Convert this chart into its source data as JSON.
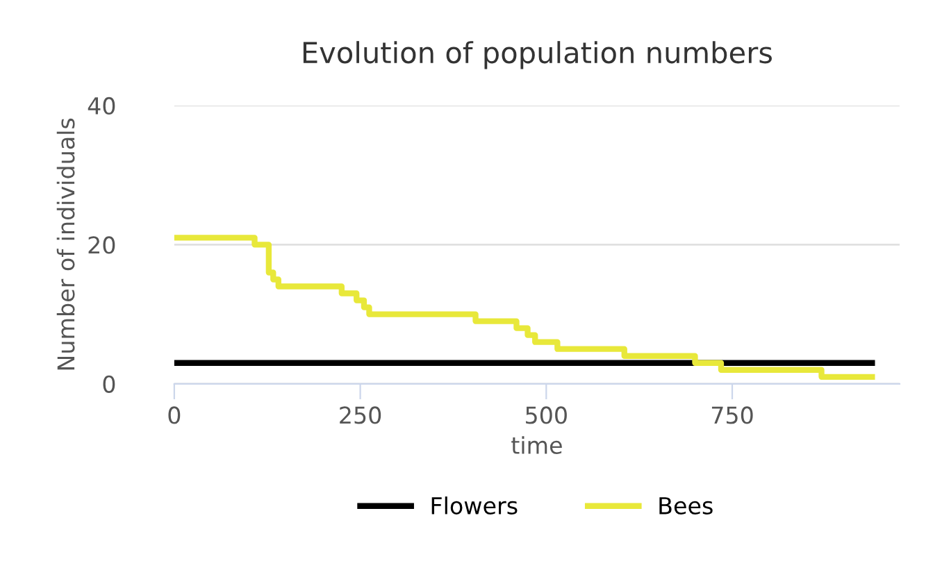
{
  "chart_data": {
    "type": "step",
    "title": "Evolution of population numbers",
    "xlabel": "time",
    "ylabel": "Number of individuals",
    "xlim": [
      0,
      975
    ],
    "xticks": [
      0,
      250,
      500,
      750
    ],
    "ylim": [
      0,
      40
    ],
    "yticks": [
      0,
      20,
      40
    ],
    "grid": "y",
    "legend": "bottom",
    "marker": "none",
    "line_style": "solid",
    "series": [
      {
        "name": "Flowers",
        "color": "#000000",
        "x": [
          0,
          938
        ],
        "values": [
          3,
          3
        ]
      },
      {
        "name": "Bees",
        "color": "#e8e83a",
        "x": [
          0,
          108,
          127,
          133,
          140,
          147,
          225,
          245,
          255,
          262,
          405,
          460,
          475,
          485,
          495,
          515,
          605,
          700,
          735,
          870,
          938
        ],
        "values": [
          21,
          20,
          16,
          15,
          14,
          14,
          13,
          12,
          11,
          10,
          9,
          8,
          7,
          6,
          6,
          5,
          4,
          3,
          2,
          1,
          1
        ]
      }
    ]
  }
}
